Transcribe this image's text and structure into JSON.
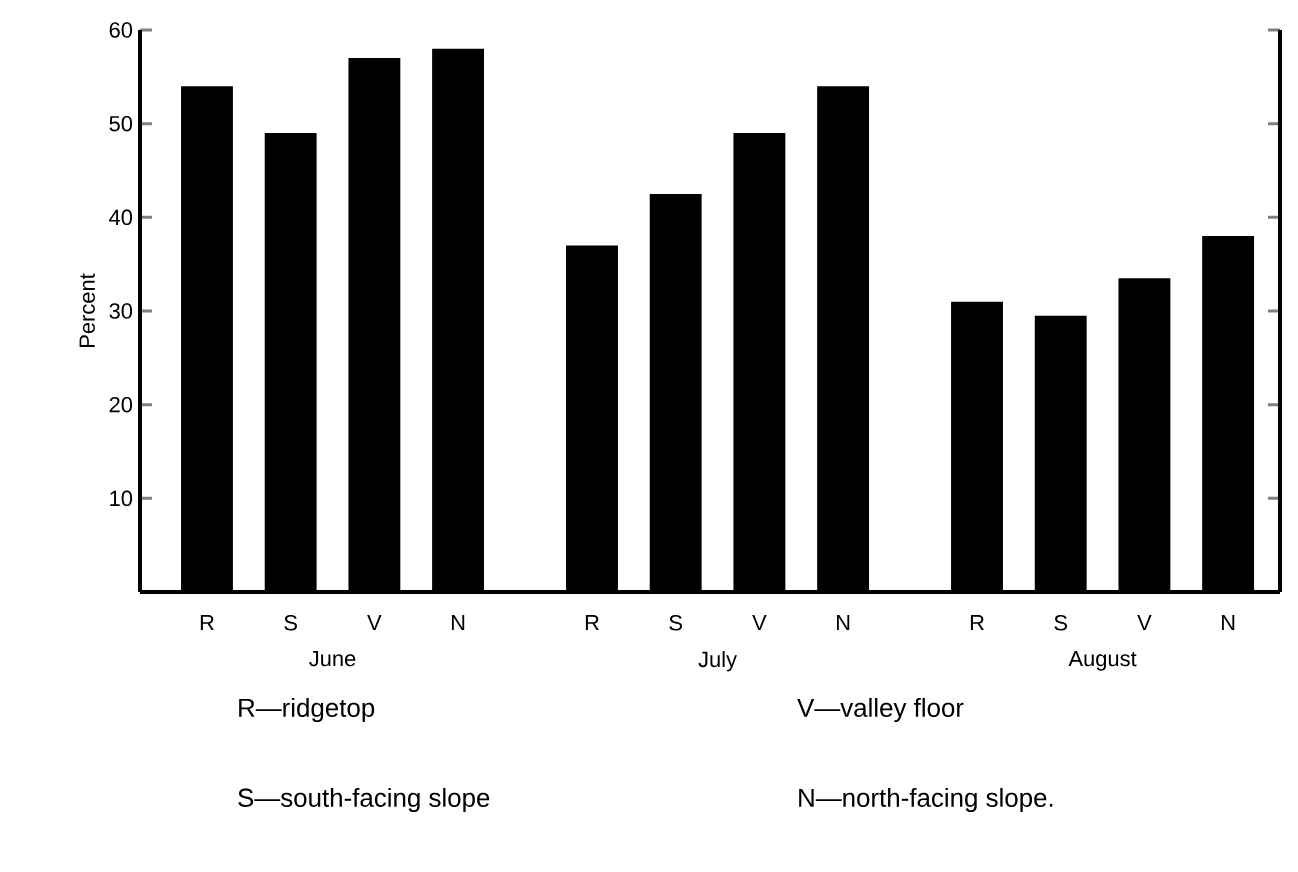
{
  "chart_data": {
    "type": "bar",
    "ylabel": "Percent",
    "categories": [
      "R",
      "S",
      "V",
      "N",
      "R",
      "S",
      "V",
      "N",
      "R",
      "S",
      "V",
      "N"
    ],
    "values": [
      54,
      49,
      57,
      58,
      37,
      42.5,
      49,
      54,
      31,
      29.5,
      33.5,
      38
    ],
    "color": "#000000",
    "ylim": [
      0,
      60
    ],
    "yticks": [
      10,
      20,
      30,
      40,
      50,
      60
    ],
    "annotations": [
      "June",
      "July",
      "August",
      "R—ridgetop",
      "V—valley floor",
      "S—south-facing slope",
      "N—north-facing slope."
    ]
  }
}
